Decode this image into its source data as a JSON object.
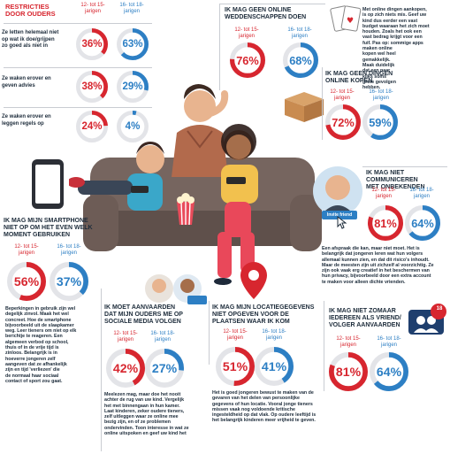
{
  "colors": {
    "red": "#d7262f",
    "blue": "#2d7fc4",
    "grey_track": "#e3e4e8",
    "text": "#1c2b3a"
  },
  "restrictions": {
    "title": "RESTRICTIES\nDOOR OUDERS",
    "age_a": "12- tot 15-\njarigen",
    "age_b": "16- tot 18-\njarigen",
    "rows": [
      {
        "label": "Ze letten helemaal niet\nop wat ik doe/grijpen\nzo goed als niet in",
        "a": "36%",
        "a_value": 36,
        "b": "63%",
        "b_value": 63
      },
      {
        "label": "Ze waken erover en\ngeven advies",
        "a": "38%",
        "a_value": 38,
        "b": "29%",
        "b_value": 29
      },
      {
        "label": "Ze waken erover en\nleggen regels op",
        "a": "24%",
        "a_value": 24,
        "b": "4%",
        "b_value": 4
      }
    ]
  },
  "weddenschappen": {
    "title": "IK MAG GEEN ONLINE\nWEDDENSCHAPPEN DOEN",
    "age_a": "12- tot 15-\njarigen",
    "age_b": "16- tot 18-\njarigen",
    "a": "76%",
    "a_value": 76,
    "b": "68%",
    "b_value": 68,
    "text": "Met online dingen aankopen,\nis op zich niets mis. Geef uw\nkind dus eerder een vast\nbudget waaraan het zich moet\nhouden. Zoals het ook een\nvast bedrag krijgt voor een\nfuif. Pas op: sommige apps\nmaken online\nkopen wel heel\ngemakkelijk.\nMaak duidelijk\ndat een paar\nkliks soms\ngrote gevolgen\nhebben."
  },
  "kopen": {
    "title": "IK MAG GEEN DINGEN\nONLINE KOPEN",
    "age_a": "12- tot 15-\njarigen",
    "age_b": "16- tot 18-\njarigen",
    "a": "72%",
    "a_value": 72,
    "b": "59%",
    "b_value": 59
  },
  "onbekenden": {
    "title": "IK MAG NIET COMMUNICEREN\nMET ONBEKENDEN",
    "age_a": "12- tot 15-\njarigen",
    "age_b": "16- tot 18-\njarigen",
    "a": "81%",
    "a_value": 81,
    "b": "64%",
    "b_value": 64,
    "button": "Invite friend",
    "text": "Een afspraak die kan, maar niet moet. Het is\nbelangrijk dat jongeren leren wat hun volgers\nallemaal kunnen zien, en dat dit risico's inhoudt.\nMaar de meesten zijn uit zichzelf al voorzichtig. Ze\nzijn ook vaak erg creatief in het beschermen van\nhun privacy, bijvoorbeeld door een extra account\nte maken voor alleen dichte vrienden."
  },
  "smartphone": {
    "title": "IK MAG MIJN SMARTPHONE\nNIET OP OM HET EVEN WELK\nMOMENT GEBRUIKEN",
    "age_a": "12- tot 15-\njarigen",
    "age_b": "16- tot 18-\njarigen",
    "a": "56%",
    "a_value": 56,
    "b": "37%",
    "b_value": 37,
    "text": "Beperkingen in gebruik zijn wel\ndegelijk zinvol. Maak het wel\nconcreet. Hoe de smartphone\nbijvoorbeeld uit de slaapkamer\nweg. Leer tieners om niet op elk\nberichtje te reageren. Een\nalgemeen verbod op school,\nthuis of in de vrije tijd is\nzinloos. Belangrijk is in\nhoeverre jongeren zelf\naangeven dat ze afhankelijk\nzijn en tijd 'verliezen' die\nde normaal haar sociaal\ncontact of sport zou gaat."
  },
  "volgen": {
    "title": "IK MOET AANVAARDEN\nDAT MIJN OUDERS ME OP\nSOCIALE MEDIA VOLGEN",
    "age_a": "12- tot 15-\njarigen",
    "age_b": "16- tot 18-\njarigen",
    "a": "42%",
    "a_value": 42,
    "b": "27%",
    "b_value": 27,
    "text": "Meelezen mag, maar doe het nooit\nachter de rug van uw kind. Vergelijk\nhet met binnengaan in hun kamer.\nLaat kinderen, zeker oudere tieners,\nzelf uitleggen waar ze online mee\nbezig zijn, en of ze problemen\nondervinden. Toon interesse in wat ze\nonline uitspoken en geef uw kind het"
  },
  "locatie": {
    "title": "IK MAG MIJN LOCATIEGEGEVENS\nNIET OPGEVEN VOOR DE\nPLAATSEN WAAR IK KOM",
    "age_a": "12- tot 15-\njarigen",
    "age_b": "16- tot 18-\njarigen",
    "a": "51%",
    "a_value": 51,
    "b": "41%",
    "b_value": 41,
    "text": "Het is goed jongeren bewust te maken van de\ngevaren van het delen van persoonlijke\ngegevens of hun locatie. Vooral jonge tieners\nmissen vaak nog voldoende kritische\ningesteldheid op dat vlak. Op oudere leeftijd is\nhet belangrijk kinderen meer vrijheid te geven."
  },
  "aanvaarden": {
    "title": "IK MAG NIET ZOMAAR\nIEDEREEN ALS VRIEND/\nVOLGER AANVAARDEN",
    "badge": "18",
    "age_a": "12- tot 15-\njarigen",
    "age_b": "16- tot 18-\njarigen",
    "a": "81%",
    "a_value": 81,
    "b": "64%",
    "b_value": 64
  }
}
